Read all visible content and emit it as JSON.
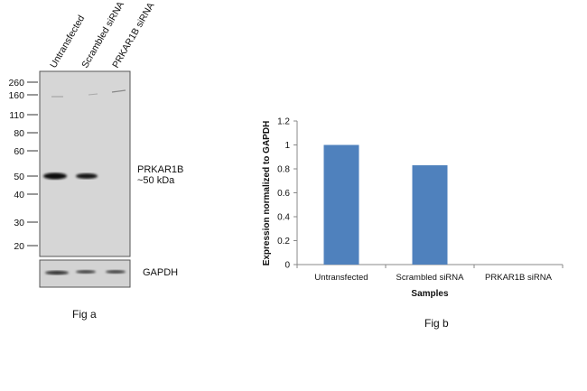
{
  "fig_a": {
    "caption": "Fig a",
    "lanes": [
      "Untransfected",
      "Scrambled siRNA",
      "PRKAR1B siRNA"
    ],
    "markers": [
      "260",
      "160",
      "110",
      "80",
      "60",
      "50",
      "40",
      "30",
      "20"
    ],
    "band_label": "PRKAR1B",
    "band_size": "~50 kDa",
    "loading_control": "GAPDH"
  },
  "chart_data": {
    "type": "bar",
    "title": "",
    "caption": "Fig b",
    "categories": [
      "Untransfected",
      "Scrambled siRNA",
      "PRKAR1B siRNA"
    ],
    "values": [
      1.0,
      0.83,
      0.0
    ],
    "xlabel": "Samples",
    "ylabel": "Expression  normalized to GAPDH",
    "ylim": [
      0,
      1.2
    ],
    "yticks": [
      "0",
      "0.2",
      "0.4",
      "0.6",
      "0.8",
      "1",
      "1.2"
    ],
    "grid": false,
    "bar_color": "#4f81bd"
  }
}
